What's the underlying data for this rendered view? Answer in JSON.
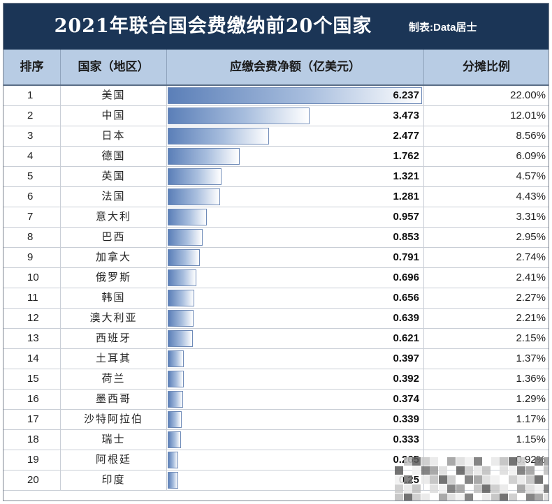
{
  "header": {
    "title": "2021年联合国会费缴纳前20个国家",
    "maker": "制表:Data居士"
  },
  "columns": {
    "rank": "排序",
    "country": "国家（地区）",
    "amount": "应缴会费净额（亿美元）",
    "share": "分摊比例"
  },
  "chart_data": {
    "type": "table",
    "title": "2021年联合国会费缴纳前20个国家",
    "columns": [
      "排序",
      "国家（地区）",
      "应缴会费净额（亿美元）",
      "分摊比例"
    ],
    "rows": [
      {
        "rank": "1",
        "country": "美国",
        "amount": "6.237",
        "share": "22.00%"
      },
      {
        "rank": "2",
        "country": "中国",
        "amount": "3.473",
        "share": "12.01%"
      },
      {
        "rank": "3",
        "country": "日本",
        "amount": "2.477",
        "share": "8.56%"
      },
      {
        "rank": "4",
        "country": "德国",
        "amount": "1.762",
        "share": "6.09%"
      },
      {
        "rank": "5",
        "country": "英国",
        "amount": "1.321",
        "share": "4.57%"
      },
      {
        "rank": "6",
        "country": "法国",
        "amount": "1.281",
        "share": "4.43%"
      },
      {
        "rank": "7",
        "country": "意大利",
        "amount": "0.957",
        "share": "3.31%"
      },
      {
        "rank": "8",
        "country": "巴西",
        "amount": "0.853",
        "share": "2.95%"
      },
      {
        "rank": "9",
        "country": "加拿大",
        "amount": "0.791",
        "share": "2.74%"
      },
      {
        "rank": "10",
        "country": "俄罗斯",
        "amount": "0.696",
        "share": "2.41%"
      },
      {
        "rank": "11",
        "country": "韩国",
        "amount": "0.656",
        "share": "2.27%"
      },
      {
        "rank": "12",
        "country": "澳大利亚",
        "amount": "0.639",
        "share": "2.21%"
      },
      {
        "rank": "13",
        "country": "西班牙",
        "amount": "0.621",
        "share": "2.15%"
      },
      {
        "rank": "14",
        "country": "土耳其",
        "amount": "0.397",
        "share": "1.37%"
      },
      {
        "rank": "15",
        "country": "荷兰",
        "amount": "0.392",
        "share": "1.36%"
      },
      {
        "rank": "16",
        "country": "墨西哥",
        "amount": "0.374",
        "share": "1.29%"
      },
      {
        "rank": "17",
        "country": "沙特阿拉伯",
        "amount": "0.339",
        "share": "1.17%"
      },
      {
        "rank": "18",
        "country": "瑞士",
        "amount": "0.333",
        "share": "1.15%"
      },
      {
        "rank": "19",
        "country": "阿根廷",
        "amount": "0.265",
        "share": "0.92%"
      },
      {
        "rank": "20",
        "country": "印度",
        "amount": "0.25",
        "share": ""
      }
    ],
    "bar_max": 6.237,
    "bar_color_dark": "#5b7fb8",
    "bar_color_light": "#ffffff"
  },
  "colors": {
    "title_bg": "#1b3556",
    "header_bg": "#b8cce4"
  }
}
